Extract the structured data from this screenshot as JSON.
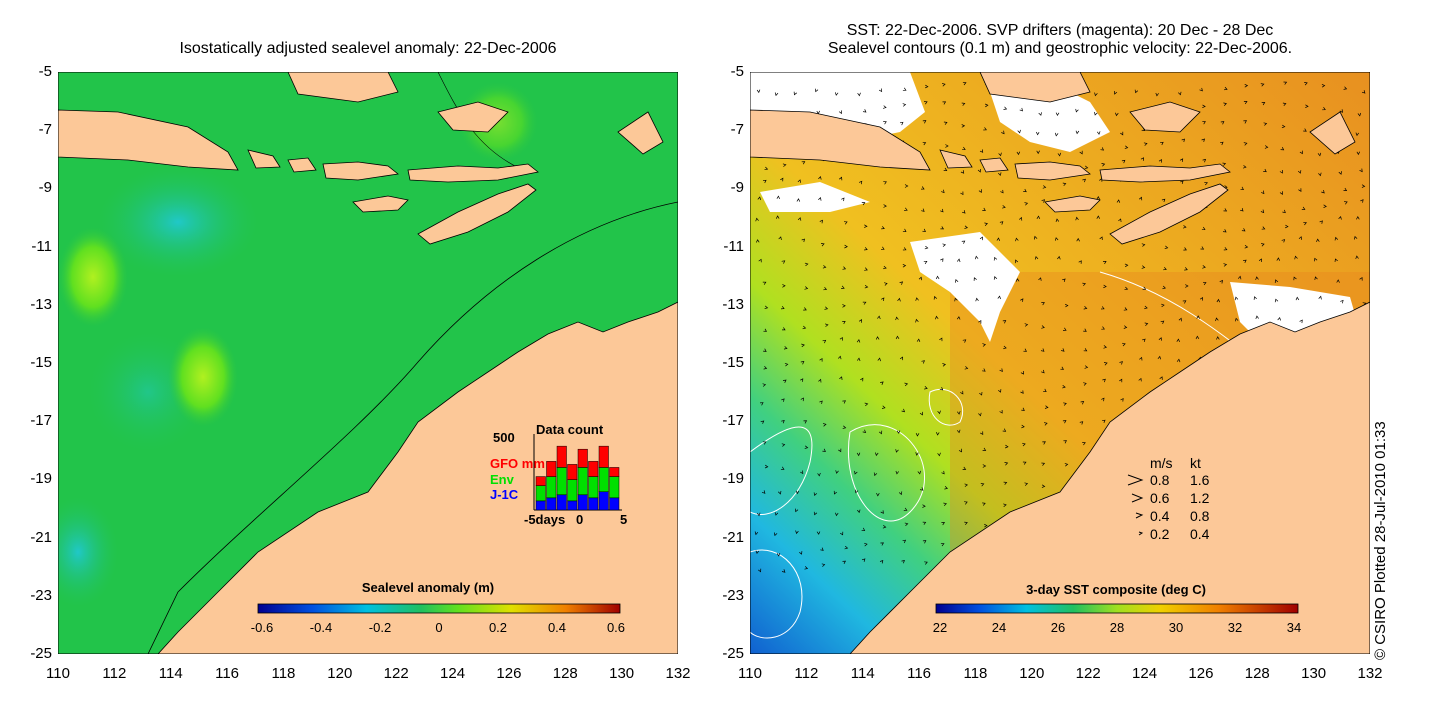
{
  "left_panel": {
    "title": "Isostatically adjusted sealevel anomaly: 22-Dec-2006",
    "colorbar_label": "Sealevel anomaly (m)",
    "colorbar_ticks": [
      "-0.6",
      "-0.4",
      "-0.2",
      "0",
      "0.2",
      "0.4",
      "0.6"
    ],
    "inset": {
      "title": "Data count",
      "y_label": "500",
      "x_labels": [
        "-5days",
        "0",
        "5"
      ],
      "legend": [
        {
          "label": "GFO mm",
          "color": "#ff0000"
        },
        {
          "label": "Env",
          "color": "#00e000"
        },
        {
          "label": "J-1C",
          "color": "#0000ff"
        }
      ],
      "bars": [
        {
          "j1c": 0.06,
          "env": 0.1,
          "gfo": 0.06
        },
        {
          "j1c": 0.08,
          "env": 0.14,
          "gfo": 0.1
        },
        {
          "j1c": 0.1,
          "env": 0.18,
          "gfo": 0.14
        },
        {
          "j1c": 0.06,
          "env": 0.14,
          "gfo": 0.1
        },
        {
          "j1c": 0.1,
          "env": 0.18,
          "gfo": 0.12
        },
        {
          "j1c": 0.08,
          "env": 0.14,
          "gfo": 0.1
        },
        {
          "j1c": 0.12,
          "env": 0.16,
          "gfo": 0.14
        },
        {
          "j1c": 0.08,
          "env": 0.14,
          "gfo": 0.06
        }
      ]
    }
  },
  "right_panel": {
    "title_line1": "SST: 22-Dec-2006. SVP drifters (magenta): 20 Dec - 28 Dec",
    "title_line2": "Sealevel contours (0.1 m) and geostrophic velocity: 22-Dec-2006.",
    "colorbar_label": "3-day SST composite (deg C)",
    "colorbar_ticks": [
      "22",
      "24",
      "26",
      "28",
      "30",
      "32",
      "34"
    ],
    "velocity_legend": {
      "header_ms": "m/s",
      "header_kt": "kt",
      "rows": [
        {
          "ms": "0.8",
          "kt": "1.6"
        },
        {
          "ms": "0.6",
          "kt": "1.2"
        },
        {
          "ms": "0.4",
          "kt": "0.8"
        },
        {
          "ms": "0.2",
          "kt": "0.4"
        }
      ]
    }
  },
  "axes": {
    "y_ticks": [
      "-5",
      "-7",
      "-9",
      "-11",
      "-13",
      "-15",
      "-17",
      "-19",
      "-21",
      "-23",
      "-25"
    ],
    "x_ticks": [
      "110",
      "112",
      "114",
      "116",
      "118",
      "120",
      "122",
      "124",
      "126",
      "128",
      "130",
      "132"
    ]
  },
  "credit": "© CSIRO Plotted 28-Jul-2010 01:33",
  "colors": {
    "land": "#fcc898",
    "ocean_left": "#22c44a",
    "ocean_right": "#f0a020",
    "coast": "#000000"
  }
}
